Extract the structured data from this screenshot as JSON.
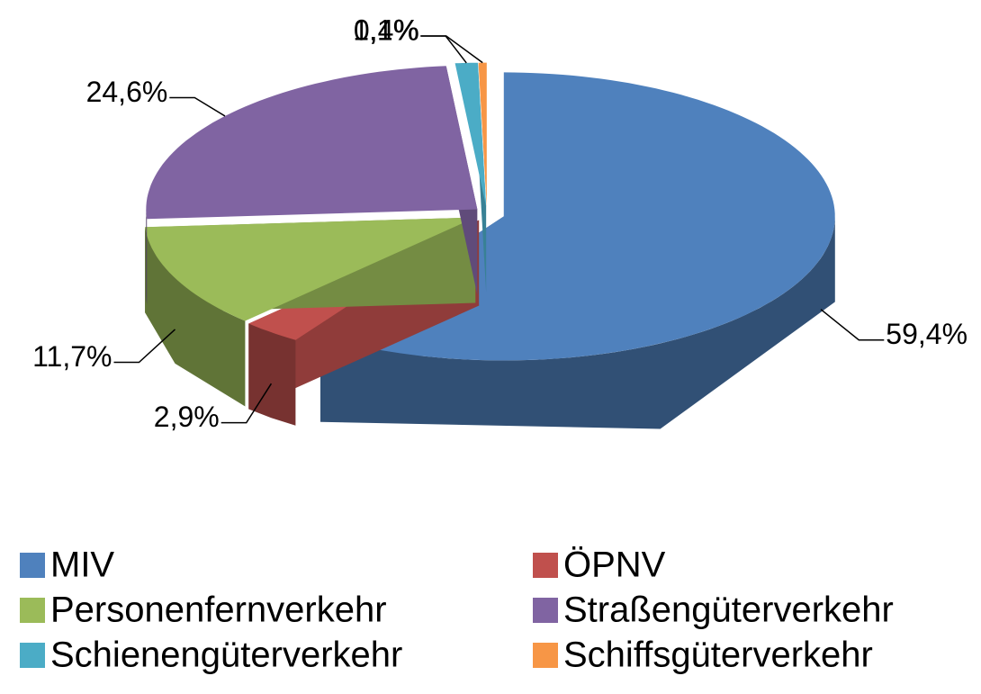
{
  "chart_data": {
    "type": "pie",
    "categories": [
      "MIV",
      "ÖPNV",
      "Personenfernverkehr",
      "Straßengüterverkehr",
      "Schienengüterverkehr",
      "Schiffsgüterverkehr"
    ],
    "values": [
      59.4,
      2.9,
      11.7,
      24.6,
      1.1,
      0.4
    ],
    "value_labels": [
      "59,4%",
      "2,9%",
      "11,7%",
      "24,6%",
      "1,1%",
      "0,4%"
    ],
    "colors": [
      "#4f81bd",
      "#c0504d",
      "#9bbb59",
      "#8064a2",
      "#4bacc6",
      "#f79646"
    ],
    "legend": "bottom"
  }
}
